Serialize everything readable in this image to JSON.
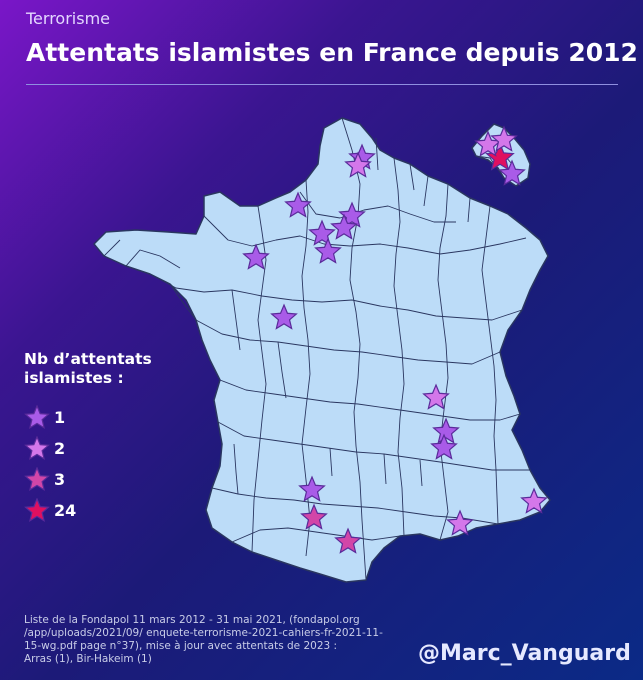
{
  "header": {
    "kicker": "Terrorisme",
    "title": "Attentats islamistes en France depuis 2012"
  },
  "legend": {
    "title_line1": "Nb d’attentats",
    "title_line2": "islamistes :",
    "items": [
      {
        "label": "1",
        "color": "#a95be8"
      },
      {
        "label": "2",
        "color": "#d477ea"
      },
      {
        "label": "3",
        "color": "#d246a8"
      },
      {
        "label": "24",
        "color": "#e01060"
      }
    ]
  },
  "source": {
    "line1": "Liste de la Fondapol 11 mars 2012 - 31 mai 2021, (fondapol.org",
    "line2": "/app/uploads/2021/09/ enquete-terrorisme-2021-cahiers-fr-2021-11-",
    "line3": "15-wg.pdf page n°37), mise à jour avec attentats de 2023 :",
    "line4": "Arras (1), Bir-Hakeim (1)"
  },
  "credit": {
    "handle": "@Marc_Vanguard"
  },
  "map": {
    "land_color": "#bcdcf8",
    "border_color": "#2a3660"
  },
  "markers": [
    {
      "place": "Arras",
      "count": 1
    },
    {
      "place": "Lille",
      "count": 2
    },
    {
      "place": "Rouen",
      "count": 1
    },
    {
      "place": "Paris",
      "count": 24
    },
    {
      "place": "Saint-Denis",
      "count": 2
    },
    {
      "place": "Versailles",
      "count": 1
    },
    {
      "place": "Rambouillet",
      "count": 1
    },
    {
      "place": "Orléans",
      "count": 1
    },
    {
      "place": "Le Mans",
      "count": 1
    },
    {
      "place": "Tours",
      "count": 1
    },
    {
      "place": "Metz",
      "count": 2
    },
    {
      "place": "Mulhouse",
      "count": 1
    },
    {
      "place": "Lyon",
      "count": 2
    },
    {
      "place": "Valence",
      "count": 1
    },
    {
      "place": "Romans",
      "count": 1
    },
    {
      "place": "Nice",
      "count": 2
    },
    {
      "place": "Marseille",
      "count": 2
    },
    {
      "place": "Toulouse",
      "count": 3
    },
    {
      "place": "Montauban",
      "count": 1
    },
    {
      "place": "Carcassonne",
      "count": 3
    },
    {
      "place": "Strasbourg",
      "count": 1
    }
  ]
}
